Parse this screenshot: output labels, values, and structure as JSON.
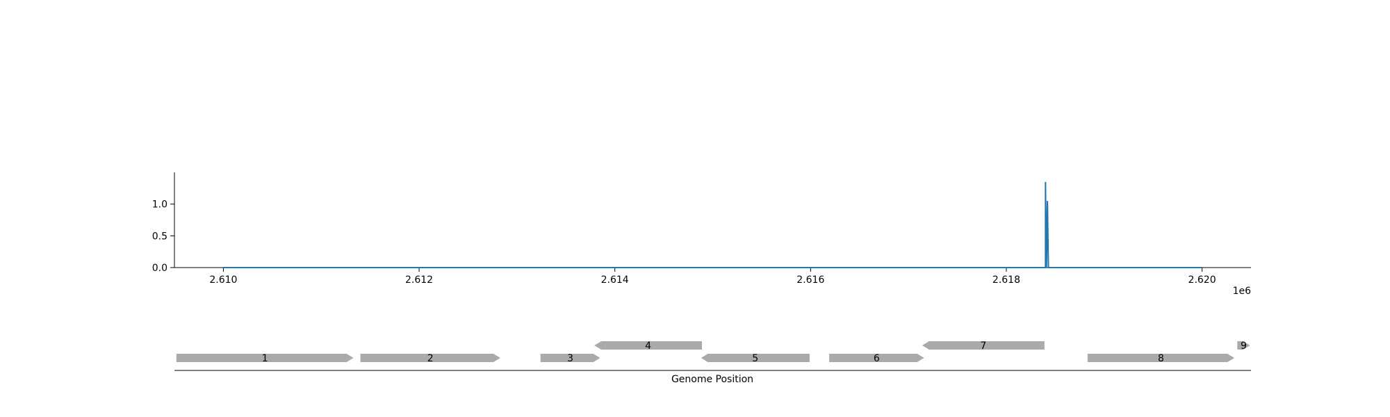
{
  "chart_data": [
    {
      "type": "line",
      "title": "",
      "xlabel": "",
      "ylabel": "",
      "x_offset_label": "1e6",
      "xlim": [
        2.6095,
        2.6205
      ],
      "ylim": [
        0,
        1.5
      ],
      "x_ticks": [
        2.61,
        2.612,
        2.614,
        2.616,
        2.618,
        2.62
      ],
      "x_tick_labels": [
        "2.610",
        "2.612",
        "2.614",
        "2.616",
        "2.618",
        "2.620"
      ],
      "y_ticks": [
        0,
        0.5,
        1
      ],
      "y_tick_labels": [
        "0.0",
        "0.5",
        "1.0"
      ],
      "grid": false,
      "series": [
        {
          "color": "#1f77b4",
          "points": [
            [
              2.61,
              0
            ],
            [
              2.6184,
              0
            ],
            [
              2.6184,
              1.35
            ],
            [
              2.61841,
              0
            ],
            [
              2.61842,
              1.05
            ],
            [
              2.61843,
              0
            ],
            [
              2.62,
              0
            ]
          ]
        }
      ]
    },
    {
      "type": "gene_track",
      "xlabel": "Genome Position",
      "xlim": [
        2.6095,
        2.6205
      ],
      "color": "#aaaaaa",
      "genes": [
        {
          "label": "1",
          "start": 2.60952,
          "end": 2.61133,
          "strand": 1,
          "row": 0
        },
        {
          "label": "2",
          "start": 2.6114,
          "end": 2.61283,
          "strand": 1,
          "row": 0
        },
        {
          "label": "3",
          "start": 2.61324,
          "end": 2.61385,
          "strand": 1,
          "row": 0
        },
        {
          "label": "4",
          "start": 2.61379,
          "end": 2.61489,
          "strand": -1,
          "row": 1
        },
        {
          "label": "5",
          "start": 2.61488,
          "end": 2.61599,
          "strand": -1,
          "row": 0
        },
        {
          "label": "6",
          "start": 2.61619,
          "end": 2.61716,
          "strand": 1,
          "row": 0
        },
        {
          "label": "7",
          "start": 2.61714,
          "end": 2.61839,
          "strand": -1,
          "row": 1
        },
        {
          "label": "8",
          "start": 2.61883,
          "end": 2.62033,
          "strand": 1,
          "row": 0
        },
        {
          "label": "9",
          "start": 2.62036,
          "end": 2.62049,
          "strand": 1,
          "row": 1
        }
      ]
    }
  ]
}
